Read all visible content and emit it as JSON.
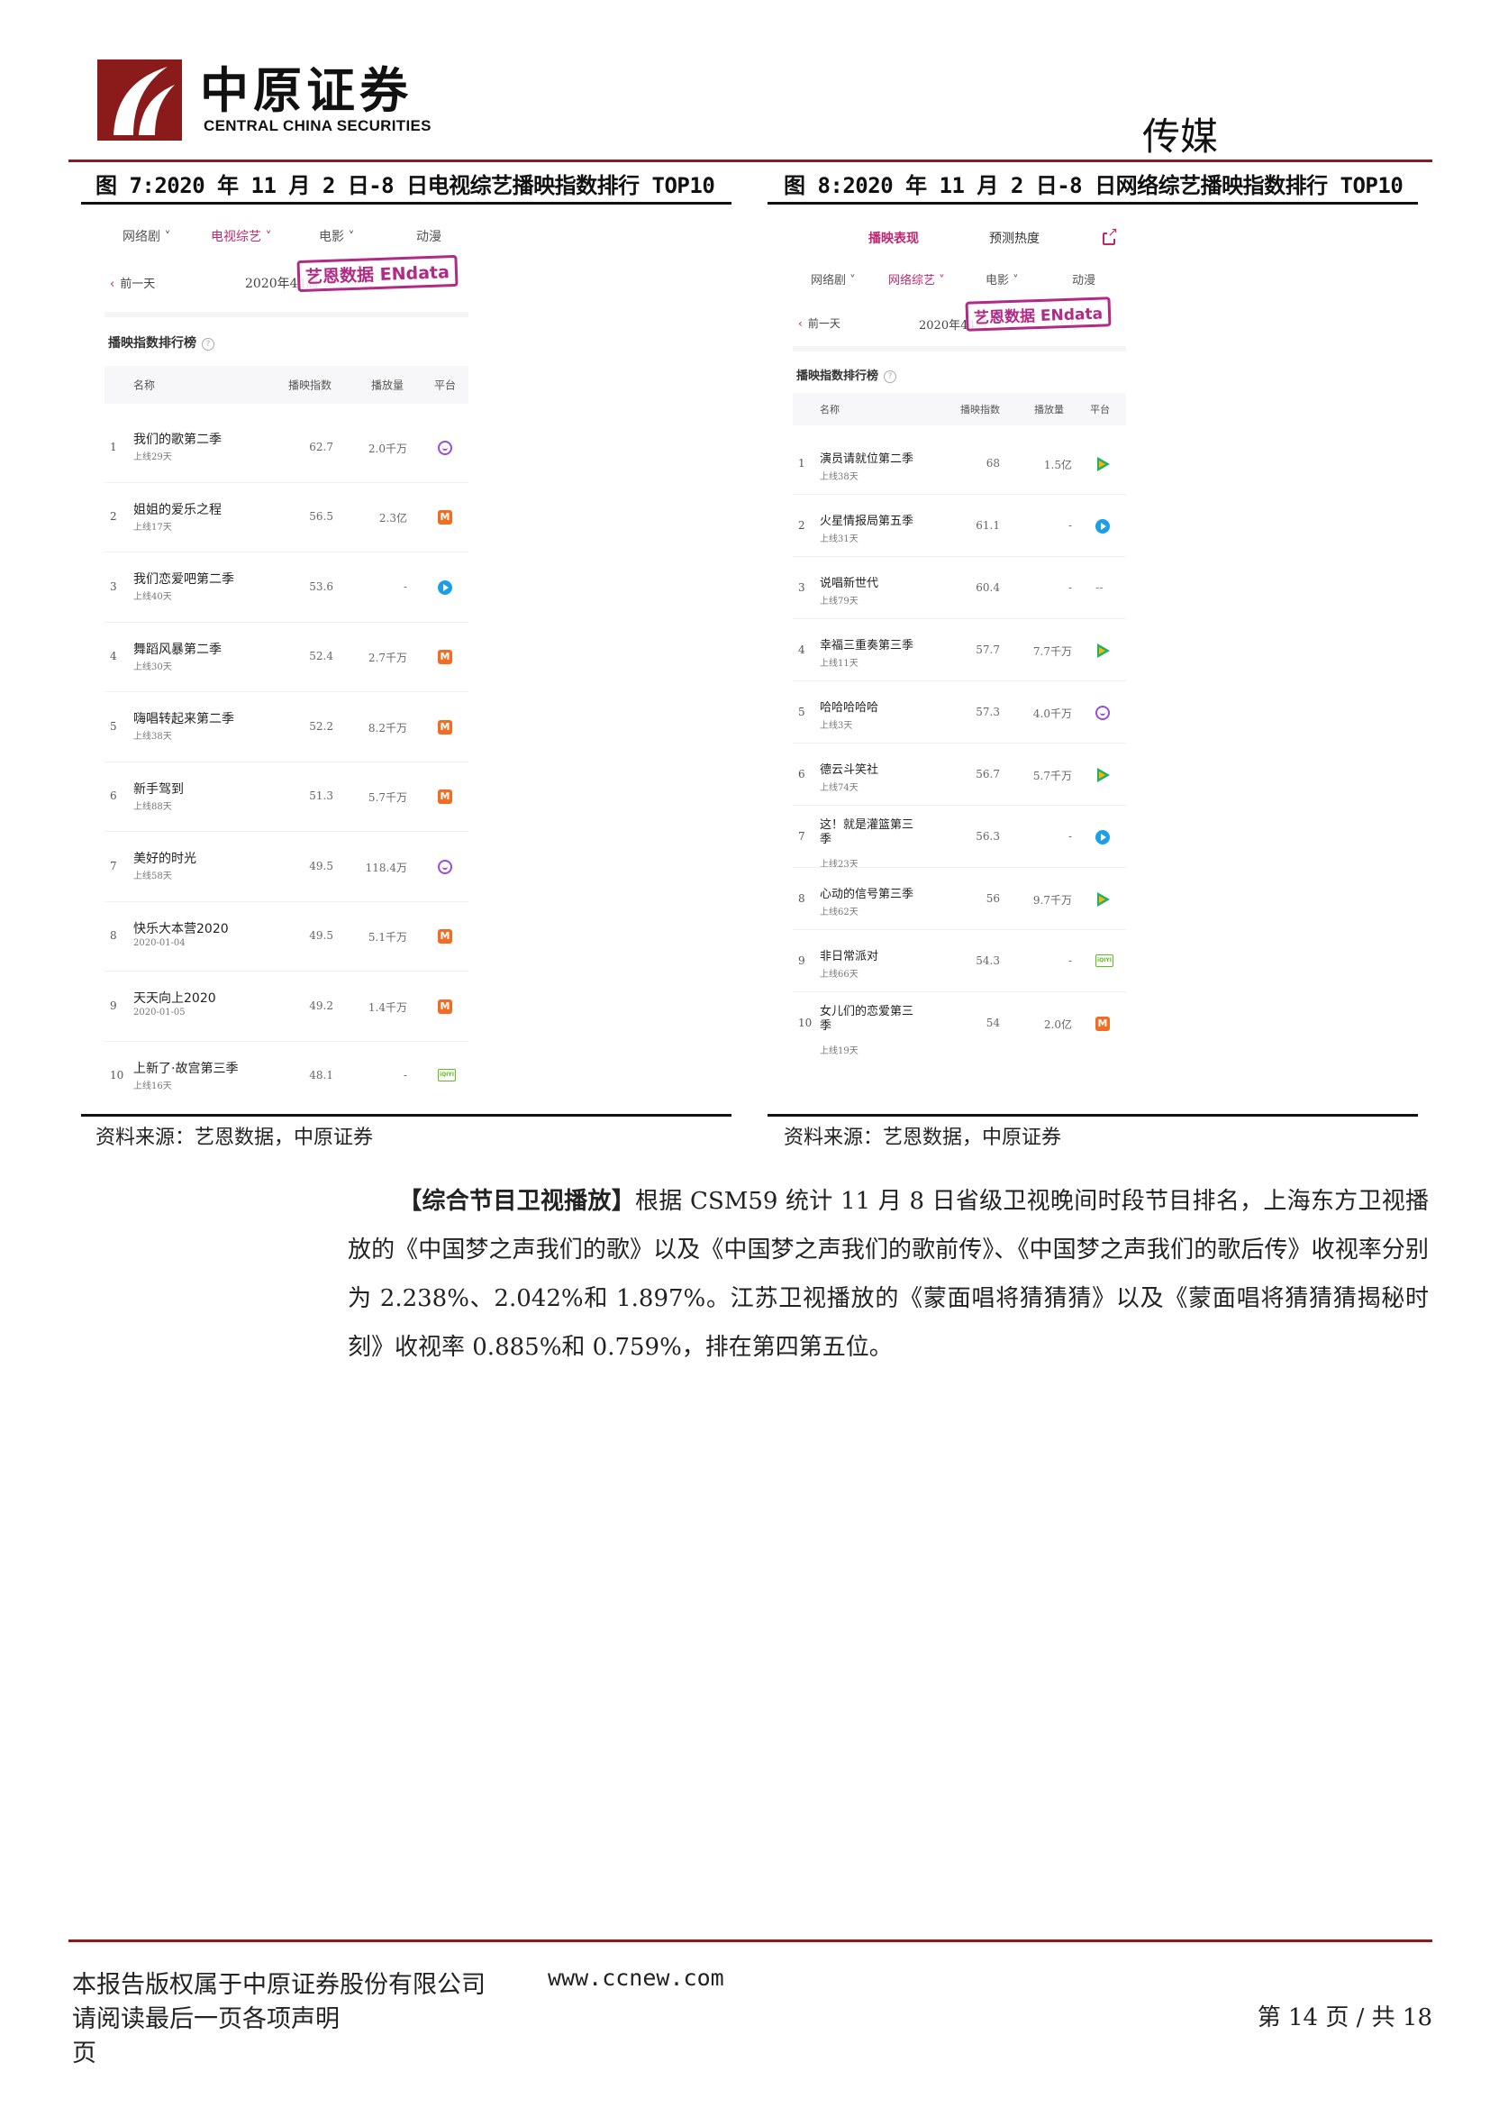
{
  "header": {
    "logo_cn": "中原证券",
    "logo_en": "CENTRAL CHINA SECURITIES",
    "section": "传媒",
    "brand_color": "#8b1a1a"
  },
  "fig7": {
    "caption": "图 7:2020 年 11 月 2 日-8 日电视综艺播映指数排行 TOP10",
    "tabs": [
      "网络剧 ˅",
      "电视综艺 ˅",
      "电影 ˅",
      "动漫"
    ],
    "prev_day": "前一天",
    "week": "2020年44周 ˅",
    "stamp": "艺恩数据 ENdata",
    "rank_title": "播映指数排行榜",
    "columns": [
      "名称",
      "播映指数",
      "播放量",
      "平台"
    ],
    "rows": [
      {
        "rank": "1",
        "name": "我们的歌第二季",
        "sub": "上线29天",
        "idx": "62.7",
        "plays": "2.0千万",
        "platform": "youku"
      },
      {
        "rank": "2",
        "name": "姐姐的爱乐之程",
        "sub": "上线17天",
        "idx": "56.5",
        "plays": "2.3亿",
        "platform": "mgtv"
      },
      {
        "rank": "3",
        "name": "我们恋爱吧第二季",
        "sub": "上线40天",
        "idx": "53.6",
        "plays": "-",
        "platform": "youqu"
      },
      {
        "rank": "4",
        "name": "舞蹈风暴第二季",
        "sub": "上线30天",
        "idx": "52.4",
        "plays": "2.7千万",
        "platform": "mgtv"
      },
      {
        "rank": "5",
        "name": "嗨唱转起来第二季",
        "sub": "上线38天",
        "idx": "52.2",
        "plays": "8.2千万",
        "platform": "mgtv"
      },
      {
        "rank": "6",
        "name": "新手驾到",
        "sub": "上线88天",
        "idx": "51.3",
        "plays": "5.7千万",
        "platform": "mgtv"
      },
      {
        "rank": "7",
        "name": "美好的时光",
        "sub": "上线58天",
        "idx": "49.5",
        "plays": "118.4万",
        "platform": "youku"
      },
      {
        "rank": "8",
        "name": "快乐大本营2020",
        "sub": "2020-01-04",
        "idx": "49.5",
        "plays": "5.1千万",
        "platform": "mgtv"
      },
      {
        "rank": "9",
        "name": "天天向上2020",
        "sub": "2020-01-05",
        "idx": "49.2",
        "plays": "1.4千万",
        "platform": "mgtv"
      },
      {
        "rank": "10",
        "name": "上新了·故宫第三季",
        "sub": "上线16天",
        "idx": "48.1",
        "plays": "-",
        "platform": "iqiyi"
      }
    ],
    "source": "资料来源：艺恩数据，中原证券"
  },
  "fig8": {
    "caption": "图 8:2020 年 11 月 2 日-8 日网络综艺播映指数排行 TOP10",
    "top_tabs": [
      "播映表现",
      "预测热度"
    ],
    "tabs": [
      "网络剧 ˅",
      "网络综艺 ˅",
      "电影 ˅",
      "动漫"
    ],
    "prev_day": "前一天",
    "week": "2020年44周 ˅",
    "stamp": "艺恩数据 ENdata",
    "rank_title": "播映指数排行榜",
    "columns": [
      "名称",
      "播映指数",
      "播放量",
      "平台"
    ],
    "rows": [
      {
        "rank": "1",
        "name": "演员请就位第二季",
        "sub": "上线38天",
        "idx": "68",
        "plays": "1.5亿",
        "platform": "tencent"
      },
      {
        "rank": "2",
        "name": "火星情报局第五季",
        "sub": "上线31天",
        "idx": "61.1",
        "plays": "-",
        "platform": "youqu"
      },
      {
        "rank": "3",
        "name": "说唱新世代",
        "sub": "上线79天",
        "idx": "60.4",
        "plays": "-",
        "platform": "none",
        "plat_text": "--"
      },
      {
        "rank": "4",
        "name": "幸福三重奏第三季",
        "sub": "上线11天",
        "idx": "57.7",
        "plays": "7.7千万",
        "platform": "tencent"
      },
      {
        "rank": "5",
        "name": "哈哈哈哈哈",
        "sub": "上线3天",
        "idx": "57.3",
        "plays": "4.0千万",
        "platform": "youku"
      },
      {
        "rank": "6",
        "name": "德云斗笑社",
        "sub": "上线74天",
        "idx": "56.7",
        "plays": "5.7千万",
        "platform": "tencent"
      },
      {
        "rank": "7",
        "name": "这！就是灌篮第三\n季",
        "sub": "上线23天",
        "idx": "56.3",
        "plays": "-",
        "platform": "youqu"
      },
      {
        "rank": "8",
        "name": "心动的信号第三季",
        "sub": "上线62天",
        "idx": "56",
        "plays": "9.7千万",
        "platform": "tencent"
      },
      {
        "rank": "9",
        "name": "非日常派对",
        "sub": "上线66天",
        "idx": "54.3",
        "plays": "-",
        "platform": "iqiyi"
      },
      {
        "rank": "10",
        "name": "女儿们的恋爱第三\n季",
        "sub": "上线19天",
        "idx": "54",
        "plays": "2.0亿",
        "platform": "mgtv"
      }
    ],
    "source": "资料来源：艺恩数据，中原证券"
  },
  "body": {
    "lead_in": "【综合节目卫视播放】",
    "text": "根据 CSM59 统计 11 月 8 日省级卫视晚间时段节目排名，上海东方卫视播放的《中国梦之声我们的歌》以及《中国梦之声我们的歌前传》、《中国梦之声我们的歌后传》收视率分别为 2.238%、2.042%和 1.897%。江苏卫视播放的《蒙面唱将猜猜猜》以及《蒙面唱将猜猜猜揭秘时刻》收视率 0.885%和 0.759%，排在第四第五位。"
  },
  "footer": {
    "copyright": "本报告版权属于中原证券股份有限公司",
    "website": "www.ccnew.com",
    "disclaimer": "请阅读最后一页各项声明",
    "page_label": "第 14 页 / 共 18",
    "page_tail": "页"
  }
}
